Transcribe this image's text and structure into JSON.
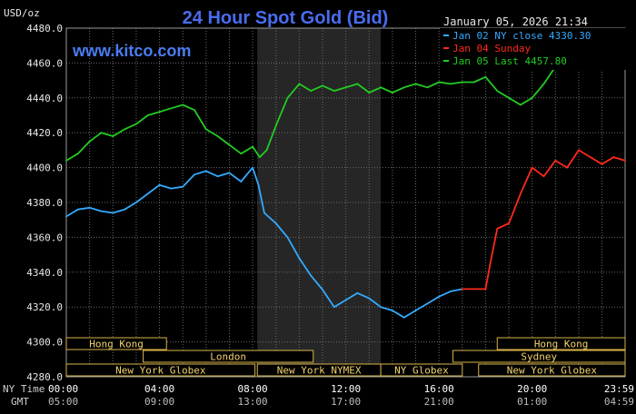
{
  "header": {
    "title": "24 Hour Spot Gold (Bid)",
    "unit": "USD/oz",
    "timestamp": "January 05, 2026 21:34",
    "watermark": "www.kitco.com"
  },
  "legend": [
    {
      "label": "Jan 02 NY close 4330.30",
      "color": "#33aaff"
    },
    {
      "label": "Jan 04 Sunday",
      "color": "#ff2a1a"
    },
    {
      "label": "Jan 05 Last 4457.80",
      "color": "#22cc22"
    }
  ],
  "time_axis": {
    "ny_label": "NY Time",
    "gmt_label": "GMT",
    "ny_ticks": [
      "00:00",
      "04:00",
      "08:00",
      "12:00",
      "16:00",
      "20:00",
      "23:59"
    ],
    "gmt_ticks": [
      "05:00",
      "09:00",
      "13:00",
      "17:00",
      "21:00",
      "01:00",
      "04:59"
    ]
  },
  "sessions": [
    {
      "label": "Hong Kong",
      "row": 1,
      "start": 0,
      "end": 4.3
    },
    {
      "label": "Hong Kong",
      "row": 1,
      "start": 18.5,
      "end": 23.99
    },
    {
      "label": "London",
      "row": 2,
      "start": 3.3,
      "end": 10.6
    },
    {
      "label": "Sydney",
      "row": 2,
      "start": 16.6,
      "end": 23.99
    },
    {
      "label": "New York Globex",
      "row": 3,
      "start": 0,
      "end": 8.1
    },
    {
      "label": "New York NYMEX",
      "row": 3,
      "start": 8.2,
      "end": 13.5
    },
    {
      "label": "NY Globex",
      "row": 3,
      "start": 13.5,
      "end": 17
    },
    {
      "label": "New York Globex",
      "row": 3,
      "start": 17.7,
      "end": 23.99
    }
  ],
  "chart_data": {
    "type": "line",
    "title": "24 Hour Spot Gold (Bid)",
    "ylabel": "USD/oz",
    "xlim": [
      0,
      23.99
    ],
    "ylim": [
      4280,
      4480
    ],
    "yticks": [
      "4480.0",
      "4460.0",
      "4440.0",
      "4420.0",
      "4400.0",
      "4380.0",
      "4360.0",
      "4340.0",
      "4320.0",
      "4300.0",
      "4280.0"
    ],
    "nymex_shade": [
      8.2,
      13.5
    ],
    "grid": true,
    "legend_position": "top-right",
    "series": [
      {
        "name": "Jan 02 NY close 4330.30",
        "color": "#33aaff",
        "x": [
          0,
          0.5,
          1,
          1.5,
          2,
          2.5,
          3,
          3.5,
          4,
          4.5,
          5,
          5.5,
          6,
          6.5,
          7,
          7.5,
          8,
          8.25,
          8.5,
          9,
          9.5,
          10,
          10.5,
          11,
          11.5,
          12,
          12.5,
          13,
          13.5,
          14,
          14.5,
          15,
          15.5,
          16,
          16.5,
          17
        ],
        "y": [
          4372,
          4376,
          4377,
          4375,
          4374,
          4376,
          4380,
          4385,
          4390,
          4388,
          4389,
          4396,
          4398,
          4395,
          4397,
          4392,
          4400,
          4390,
          4374,
          4368,
          4360,
          4348,
          4338,
          4330,
          4320,
          4324,
          4328,
          4325,
          4320,
          4318,
          4314,
          4318,
          4322,
          4326,
          4329,
          4330.3
        ]
      },
      {
        "name": "Jan 04 Sunday",
        "color": "#ff2a1a",
        "x": [
          17,
          18,
          18.2,
          18.5,
          19,
          19.5,
          20,
          20.5,
          21,
          21.5,
          22,
          22.5,
          23,
          23.5,
          23.99
        ],
        "y": [
          4330.3,
          4330.3,
          4345,
          4365,
          4368,
          4385,
          4400,
          4395,
          4404,
          4400,
          4410,
          4406,
          4402,
          4406,
          4404
        ]
      },
      {
        "name": "Jan 05 Last 4457.80",
        "color": "#22cc22",
        "x": [
          0,
          0.5,
          1,
          1.5,
          2,
          2.5,
          3,
          3.5,
          4,
          4.5,
          5,
          5.5,
          6,
          6.5,
          7,
          7.5,
          8,
          8.3,
          8.6,
          9,
          9.5,
          10,
          10.5,
          11,
          11.5,
          12,
          12.5,
          13,
          13.5,
          14,
          14.5,
          15,
          15.5,
          16,
          16.5,
          17,
          17.5,
          18,
          18.5,
          19,
          19.5,
          20,
          20.5,
          21
        ],
        "y": [
          4404,
          4408,
          4415,
          4420,
          4418,
          4422,
          4425,
          4430,
          4432,
          4434,
          4436,
          4433,
          4422,
          4418,
          4413,
          4408,
          4412,
          4406,
          4410,
          4424,
          4440,
          4448,
          4444,
          4447,
          4444,
          4446,
          4448,
          4443,
          4446,
          4443,
          4446,
          4448,
          4446,
          4449,
          4448,
          4449,
          4449,
          4452,
          4444,
          4440,
          4436,
          4440,
          4448,
          4457.8
        ]
      }
    ]
  }
}
